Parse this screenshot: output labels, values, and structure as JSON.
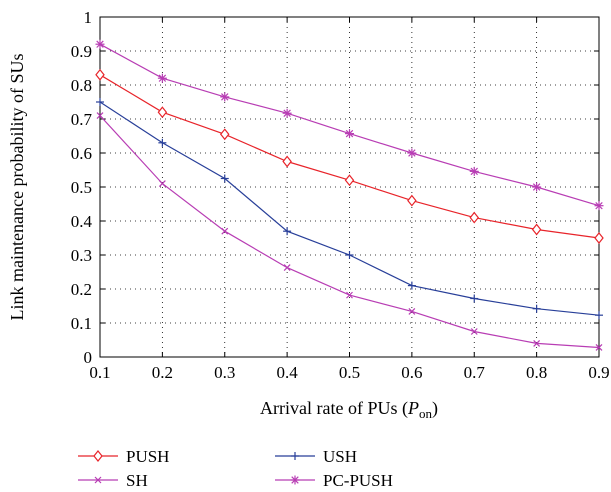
{
  "chart_data": {
    "type": "line",
    "title": "",
    "xlabel": "Arrival rate of PUs (",
    "xlabel_var": "P",
    "xlabel_sub": "on",
    "xlabel_end": ")",
    "ylabel": "Link maintenance probability of SUs",
    "xlim": [
      0.1,
      0.9
    ],
    "ylim": [
      0,
      1
    ],
    "x_ticks": [
      "0.1",
      "0.2",
      "0.3",
      "0.4",
      "0.5",
      "0.6",
      "0.7",
      "0.8",
      "0.9"
    ],
    "y_ticks": [
      "0",
      "0.1",
      "0.2",
      "0.3",
      "0.4",
      "0.5",
      "0.6",
      "0.7",
      "0.8",
      "0.9",
      "1"
    ],
    "grid": true,
    "legend_position": "bottom",
    "x": [
      0.1,
      0.2,
      0.3,
      0.4,
      0.5,
      0.6,
      0.7,
      0.8,
      0.9
    ],
    "series": [
      {
        "name": "PUSH",
        "color": "#e8242a",
        "marker": "diamond",
        "values": [
          0.83,
          0.72,
          0.655,
          0.575,
          0.52,
          0.46,
          0.41,
          0.375,
          0.35
        ]
      },
      {
        "name": "USH",
        "color": "#283f99",
        "marker": "plus",
        "values": [
          0.75,
          0.63,
          0.525,
          0.37,
          0.3,
          0.21,
          0.172,
          0.142,
          0.123
        ]
      },
      {
        "name": "SH",
        "color": "#b83db4",
        "marker": "x",
        "values": [
          0.71,
          0.51,
          0.37,
          0.263,
          0.182,
          0.134,
          0.075,
          0.04,
          0.028
        ]
      },
      {
        "name": "PC-PUSH",
        "color": "#b83db4",
        "marker": "star",
        "values": [
          0.92,
          0.82,
          0.765,
          0.717,
          0.657,
          0.6,
          0.546,
          0.5,
          0.445
        ]
      }
    ]
  }
}
